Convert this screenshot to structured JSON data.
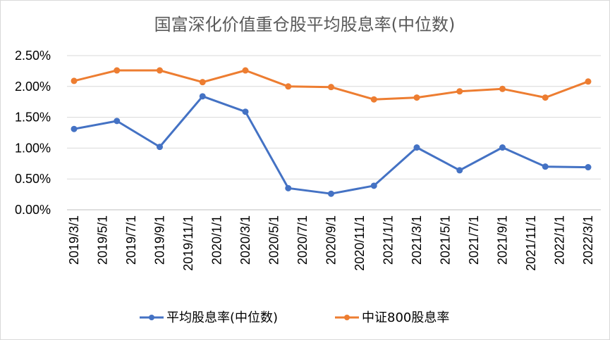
{
  "chart_data": {
    "type": "line",
    "title": "国富深化价值重仓股平均股息率(中位数)",
    "categories": [
      "2019/3/1",
      "2019/5/1",
      "2019/7/1",
      "2019/9/1",
      "2019/11/1",
      "2020/1/1",
      "2020/3/1",
      "2020/5/1",
      "2020/7/1",
      "2020/9/1",
      "2020/11/1",
      "2021/1/1",
      "2021/3/1",
      "2021/5/1",
      "2021/7/1",
      "2021/9/1",
      "2021/11/1",
      "2022/1/1",
      "2022/3/1"
    ],
    "y_ticks": [
      "0.00%",
      "0.50%",
      "1.00%",
      "1.50%",
      "2.00%",
      "2.50%"
    ],
    "ylim": [
      0,
      2.5
    ],
    "grid": true,
    "legend_position": "bottom",
    "series": [
      {
        "name": "平均股息率(中位数)",
        "color": "#4472C4",
        "points": [
          {
            "x": "2019/3/1",
            "y": 1.31
          },
          {
            "x": "2019/6/1",
            "y": 1.44
          },
          {
            "x": "2019/9/1",
            "y": 1.02
          },
          {
            "x": "2019/12/1",
            "y": 1.84
          },
          {
            "x": "2020/3/1",
            "y": 1.59
          },
          {
            "x": "2020/6/1",
            "y": 0.35
          },
          {
            "x": "2020/9/1",
            "y": 0.26
          },
          {
            "x": "2020/12/1",
            "y": 0.39
          },
          {
            "x": "2021/3/1",
            "y": 1.01
          },
          {
            "x": "2021/6/1",
            "y": 0.64
          },
          {
            "x": "2021/9/1",
            "y": 1.01
          },
          {
            "x": "2021/12/1",
            "y": 0.7
          },
          {
            "x": "2022/3/1",
            "y": 0.69
          }
        ]
      },
      {
        "name": "中证800股息率",
        "color": "#ED7D31",
        "points": [
          {
            "x": "2019/3/1",
            "y": 2.09
          },
          {
            "x": "2019/6/1",
            "y": 2.26
          },
          {
            "x": "2019/9/1",
            "y": 2.26
          },
          {
            "x": "2019/12/1",
            "y": 2.07
          },
          {
            "x": "2020/3/1",
            "y": 2.26
          },
          {
            "x": "2020/6/1",
            "y": 2.0
          },
          {
            "x": "2020/9/1",
            "y": 1.99
          },
          {
            "x": "2020/12/1",
            "y": 1.79
          },
          {
            "x": "2021/3/1",
            "y": 1.82
          },
          {
            "x": "2021/6/1",
            "y": 1.92
          },
          {
            "x": "2021/9/1",
            "y": 1.96
          },
          {
            "x": "2021/12/1",
            "y": 1.82
          },
          {
            "x": "2022/3/1",
            "y": 2.08
          }
        ]
      }
    ]
  }
}
